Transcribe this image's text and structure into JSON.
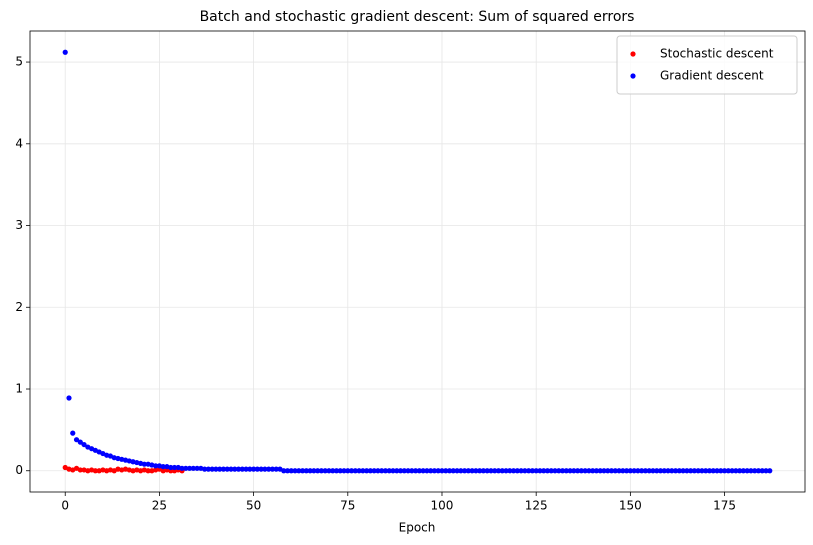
{
  "chart_data": {
    "type": "scatter",
    "title": "Batch and stochastic gradient descent: Sum of squared errors",
    "x_label": "Epoch",
    "xlim": [
      -9.35,
      196.35
    ],
    "xticks": [
      0,
      25,
      50,
      75,
      100,
      125,
      150,
      175
    ],
    "ylim": [
      -0.26,
      5.38
    ],
    "yticks": [
      0,
      1,
      2,
      3,
      4,
      5
    ],
    "grid": true,
    "legend": "upper right",
    "series": [
      {
        "name": "Stochastic descent",
        "color": "#ff0000",
        "x": [
          0,
          1,
          2,
          3,
          4,
          5,
          6,
          7,
          8,
          9,
          10,
          11,
          12,
          13,
          14,
          15,
          16,
          17,
          18,
          19,
          20,
          21,
          22,
          23,
          24,
          25,
          26,
          27,
          28,
          29,
          30,
          31
        ],
        "values": [
          0.04,
          0.02,
          0.01,
          0.03,
          0.01,
          0.01,
          0.0,
          0.01,
          0.0,
          0.0,
          0.01,
          0.0,
          0.01,
          0.0,
          0.02,
          0.01,
          0.02,
          0.01,
          0.0,
          0.01,
          0.0,
          0.01,
          0.0,
          0.0,
          0.01,
          0.02,
          0.0,
          0.01,
          0.0,
          0.0,
          0.01,
          0.0
        ]
      },
      {
        "name": "Gradient descent",
        "color": "#0000ff",
        "x": [
          0,
          1,
          2,
          3,
          4,
          5,
          6,
          7,
          8,
          9,
          10,
          11,
          12,
          13,
          14,
          15,
          16,
          17,
          18,
          19,
          20,
          21,
          22,
          23,
          24,
          25,
          26,
          27,
          28,
          29,
          30,
          31,
          32,
          33,
          34,
          35,
          36,
          37,
          38,
          39,
          40,
          41,
          42,
          43,
          44,
          45,
          46,
          47,
          48,
          49,
          50,
          51,
          52,
          53,
          54,
          55,
          56,
          57,
          58,
          59,
          60,
          61,
          62,
          63,
          64,
          65,
          66,
          67,
          68,
          69,
          70,
          71,
          72,
          73,
          74,
          75,
          76,
          77,
          78,
          79,
          80,
          81,
          82,
          83,
          84,
          85,
          86,
          87,
          88,
          89,
          90,
          91,
          92,
          93,
          94,
          95,
          96,
          97,
          98,
          99,
          100,
          101,
          102,
          103,
          104,
          105,
          106,
          107,
          108,
          109,
          110,
          111,
          112,
          113,
          114,
          115,
          116,
          117,
          118,
          119,
          120,
          121,
          122,
          123,
          124,
          125,
          126,
          127,
          128,
          129,
          130,
          131,
          132,
          133,
          134,
          135,
          136,
          137,
          138,
          139,
          140,
          141,
          142,
          143,
          144,
          145,
          146,
          147,
          148,
          149,
          150,
          151,
          152,
          153,
          154,
          155,
          156,
          157,
          158,
          159,
          160,
          161,
          162,
          163,
          164,
          165,
          166,
          167,
          168,
          169,
          170,
          171,
          172,
          173,
          174,
          175,
          176,
          177,
          178,
          179,
          180,
          181,
          182,
          183,
          184,
          185,
          186,
          187
        ],
        "values": [
          5.12,
          0.89,
          0.46,
          0.38,
          0.35,
          0.32,
          0.29,
          0.27,
          0.25,
          0.23,
          0.21,
          0.19,
          0.18,
          0.16,
          0.15,
          0.14,
          0.13,
          0.12,
          0.11,
          0.1,
          0.09,
          0.08,
          0.08,
          0.07,
          0.06,
          0.06,
          0.05,
          0.05,
          0.04,
          0.04,
          0.04,
          0.03,
          0.03,
          0.03,
          0.03,
          0.03,
          0.03,
          0.02,
          0.02,
          0.02,
          0.02,
          0.02,
          0.02,
          0.02,
          0.02,
          0.02,
          0.02,
          0.02,
          0.02,
          0.02,
          0.02,
          0.02,
          0.02,
          0.02,
          0.02,
          0.02,
          0.02,
          0.02,
          0,
          0,
          0,
          0,
          0,
          0,
          0,
          0,
          0,
          0,
          0,
          0,
          0,
          0,
          0,
          0,
          0,
          0,
          0,
          0,
          0,
          0,
          0,
          0,
          0,
          0,
          0,
          0,
          0,
          0,
          0,
          0,
          0,
          0,
          0,
          0,
          0,
          0,
          0,
          0,
          0,
          0,
          0,
          0,
          0,
          0,
          0,
          0,
          0,
          0,
          0,
          0,
          0,
          0,
          0,
          0,
          0,
          0,
          0,
          0,
          0,
          0,
          0,
          0,
          0,
          0,
          0,
          0,
          0,
          0,
          0,
          0,
          0,
          0,
          0,
          0,
          0,
          0,
          0,
          0,
          0,
          0,
          0,
          0,
          0,
          0,
          0,
          0,
          0,
          0,
          0,
          0,
          0,
          0,
          0,
          0,
          0,
          0,
          0,
          0,
          0,
          0,
          0,
          0,
          0,
          0,
          0,
          0,
          0,
          0,
          0,
          0,
          0,
          0,
          0,
          0,
          0,
          0,
          0,
          0,
          0,
          0,
          0,
          0,
          0,
          0,
          0,
          0,
          0,
          0
        ]
      }
    ]
  }
}
